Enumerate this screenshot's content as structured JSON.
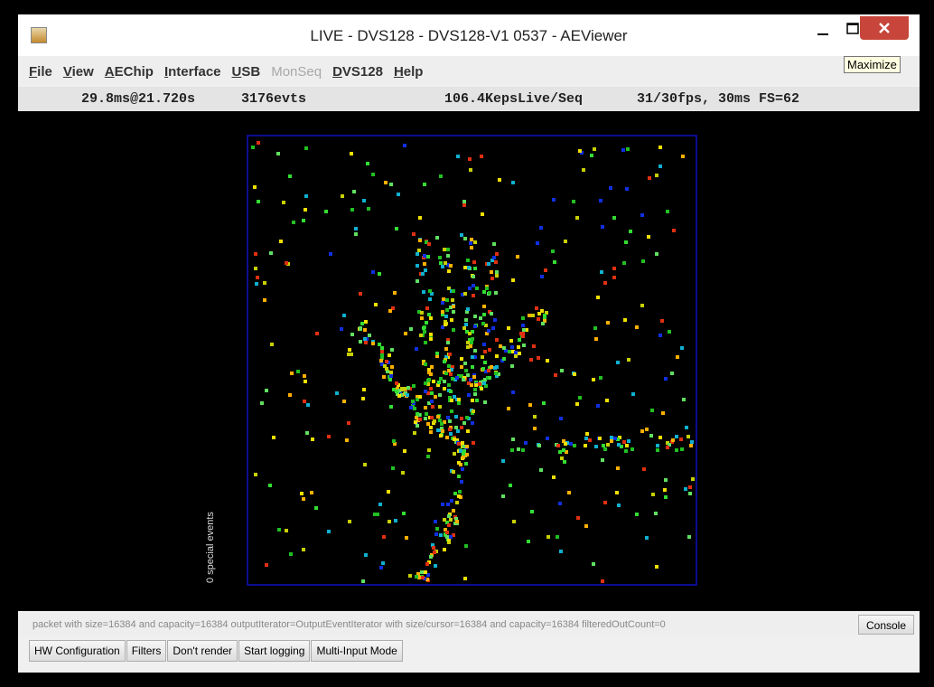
{
  "window": {
    "title": "LIVE - DVS128 - DVS128-V1 0537 - AEViewer",
    "tooltip": "Maximize"
  },
  "menu": [
    {
      "label": "File",
      "enabled": true
    },
    {
      "label": "View",
      "enabled": true
    },
    {
      "label": "AEChip",
      "enabled": true
    },
    {
      "label": "Interface",
      "enabled": true
    },
    {
      "label": "USB",
      "enabled": true
    },
    {
      "label": "MonSeq",
      "enabled": false
    },
    {
      "label": "DVS128",
      "enabled": true
    },
    {
      "label": "Help",
      "enabled": true
    }
  ],
  "status": {
    "time": "29.8ms@21.720s",
    "events": "3176evts",
    "rate": "106.4KepsLive/Seq",
    "fps": "31/30fps, 30ms FS=62"
  },
  "canvas": {
    "label": "0 special events"
  },
  "status_line": "packet with size=16384 and capacity=16384 outputIterator=OutputEventIterator with size/cursor=16384 and capacity=16384 filteredOutCount=0",
  "console_button": "Console",
  "buttons": [
    "HW Configuration",
    "Filters",
    "Don't render",
    "Start logging",
    "Multi-Input Mode"
  ]
}
